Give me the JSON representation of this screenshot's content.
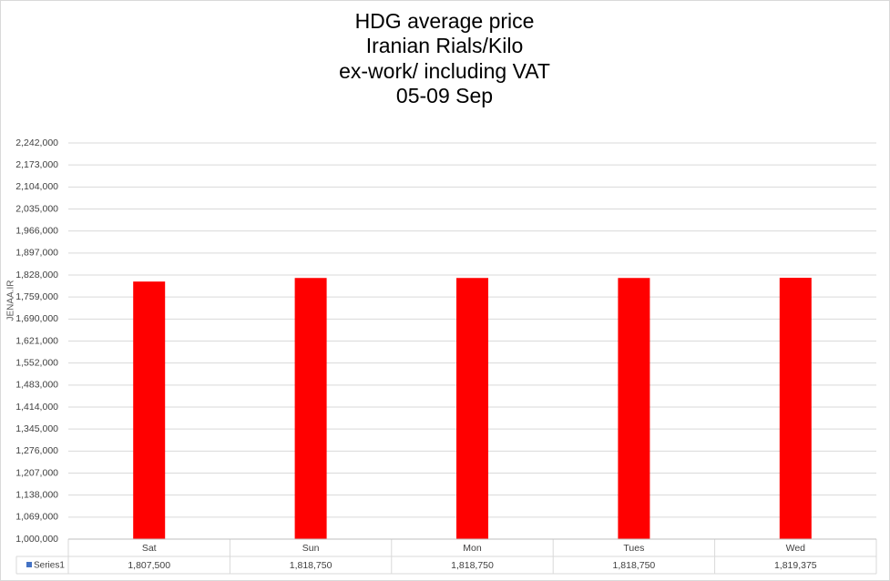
{
  "chart_data": {
    "type": "bar",
    "title_lines": [
      "HDG average price",
      "Iranian Rials/Kilo",
      "ex-work/ including VAT",
      "05-09 Sep"
    ],
    "watermark": "JENAA.IR",
    "categories": [
      "Sat",
      "Sun",
      "Mon",
      "Tues",
      "Wed"
    ],
    "series": [
      {
        "name": "Series1",
        "color": "#ff0000",
        "values": [
          1807500,
          1818750,
          1818750,
          1818750,
          1819375
        ],
        "value_labels": [
          "1,807,500",
          "1,818,750",
          "1,818,750",
          "1,818,750",
          "1,819,375"
        ]
      }
    ],
    "ylim": [
      1000000,
      2242000
    ],
    "yticks": [
      {
        "value": 1000000,
        "label": "1,000,000"
      },
      {
        "value": 1069000,
        "label": "1,069,000"
      },
      {
        "value": 1138000,
        "label": "1,138,000"
      },
      {
        "value": 1207000,
        "label": "1,207,000"
      },
      {
        "value": 1276000,
        "label": "1,276,000"
      },
      {
        "value": 1345000,
        "label": "1,345,000"
      },
      {
        "value": 1414000,
        "label": "1,414,000"
      },
      {
        "value": 1483000,
        "label": "1,483,000"
      },
      {
        "value": 1552000,
        "label": "1,552,000"
      },
      {
        "value": 1621000,
        "label": "1,621,000"
      },
      {
        "value": 1690000,
        "label": "1,690,000"
      },
      {
        "value": 1759000,
        "label": "1,759,000"
      },
      {
        "value": 1828000,
        "label": "1,828,000"
      },
      {
        "value": 1897000,
        "label": "1,897,000"
      },
      {
        "value": 1966000,
        "label": "1,966,000"
      },
      {
        "value": 2035000,
        "label": "2,035,000"
      },
      {
        "value": 2104000,
        "label": "2,104,000"
      },
      {
        "value": 2173000,
        "label": "2,173,000"
      },
      {
        "value": 2242000,
        "label": "2,242,000"
      }
    ],
    "grid": true
  }
}
